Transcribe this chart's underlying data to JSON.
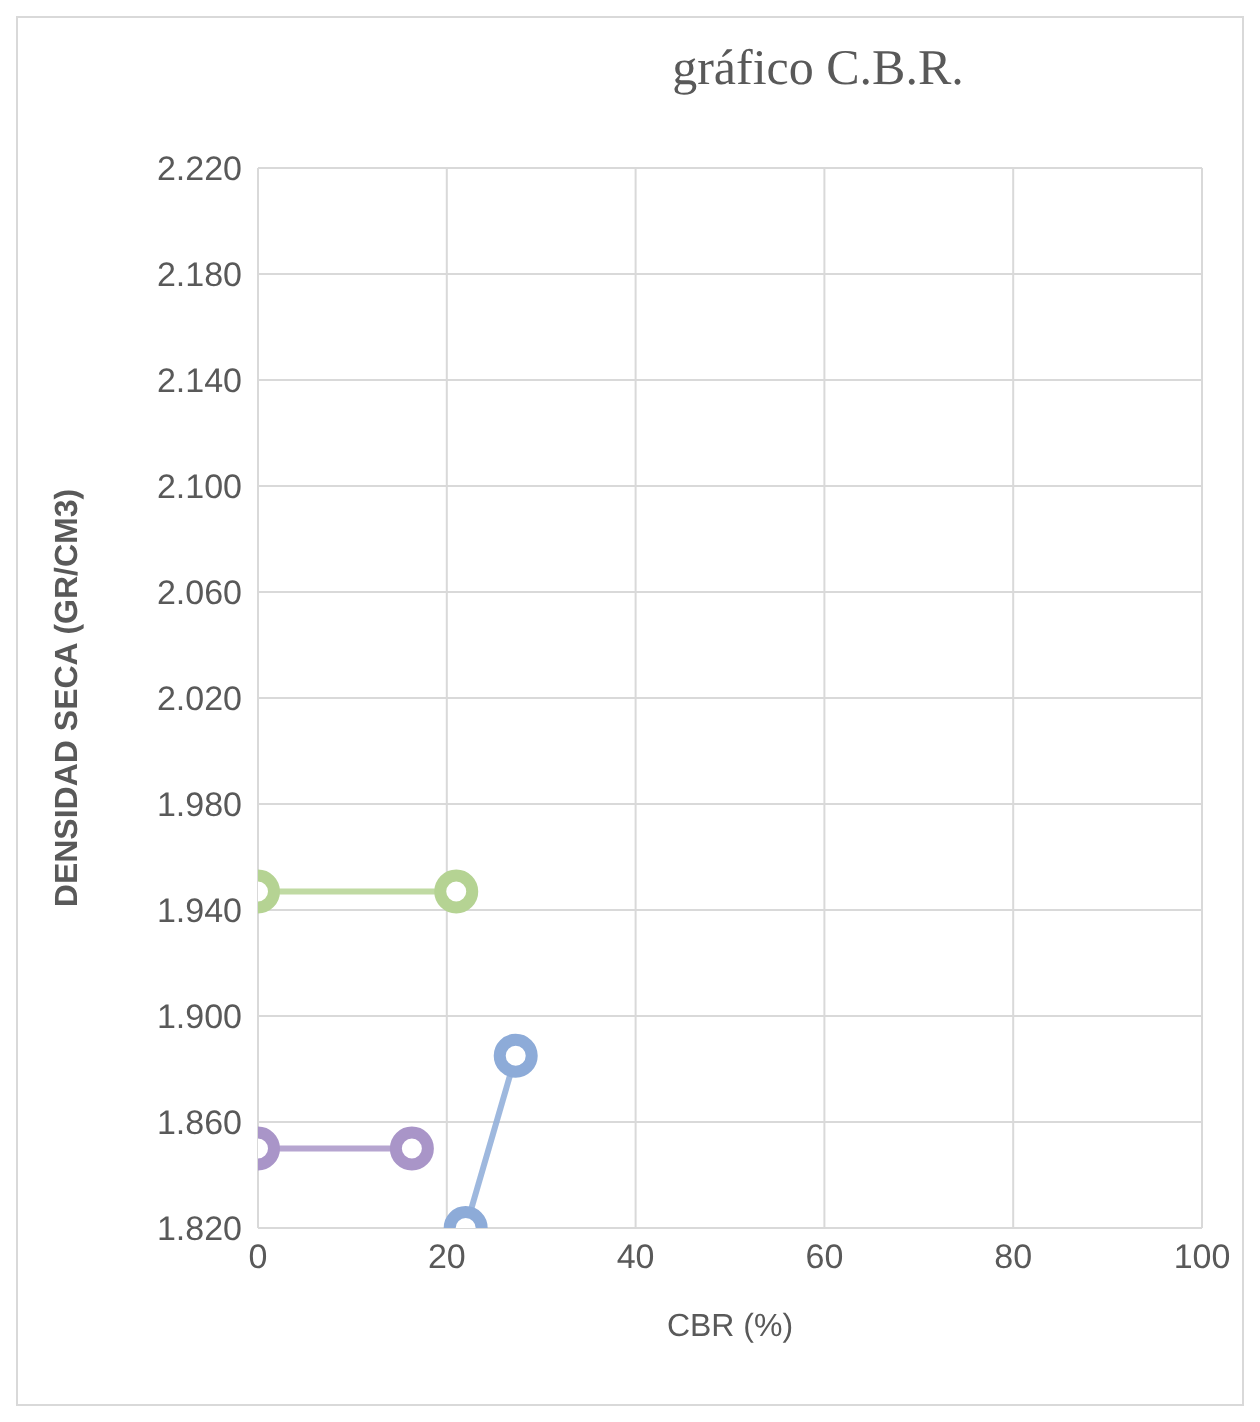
{
  "chart_data": {
    "type": "line",
    "title": "gráfico C.B.R.",
    "xlabel": "CBR  (%)",
    "ylabel": "DENSIDAD SECA (GR/CM3)",
    "xlim": [
      0,
      100
    ],
    "xticks": [
      0,
      20,
      40,
      60,
      80,
      100
    ],
    "ylim": [
      1.82,
      2.22
    ],
    "yticks": [
      {
        "value": 1.82,
        "label": "1.820"
      },
      {
        "value": 1.86,
        "label": "1.860"
      },
      {
        "value": 1.9,
        "label": "1.900"
      },
      {
        "value": 1.94,
        "label": "1.940"
      },
      {
        "value": 1.98,
        "label": "1.980"
      },
      {
        "value": 2.02,
        "label": "2.020"
      },
      {
        "value": 2.06,
        "label": "2.060"
      },
      {
        "value": 2.1,
        "label": "2.100"
      },
      {
        "value": 2.14,
        "label": "2.140"
      },
      {
        "value": 2.18,
        "label": "2.180"
      },
      {
        "value": 2.22,
        "label": "2.220"
      }
    ],
    "grid": true,
    "marker": "circle",
    "line_style": "solid",
    "series": [
      {
        "color": "#b5d393",
        "x": [
          0,
          21
        ],
        "values": [
          1.947,
          1.947
        ]
      },
      {
        "color": "#a995c8",
        "x": [
          0,
          16.3
        ],
        "values": [
          1.85,
          1.85
        ]
      },
      {
        "color": "#8dabd8",
        "x": [
          22,
          27.3
        ],
        "values": [
          1.82,
          1.885
        ]
      }
    ]
  }
}
